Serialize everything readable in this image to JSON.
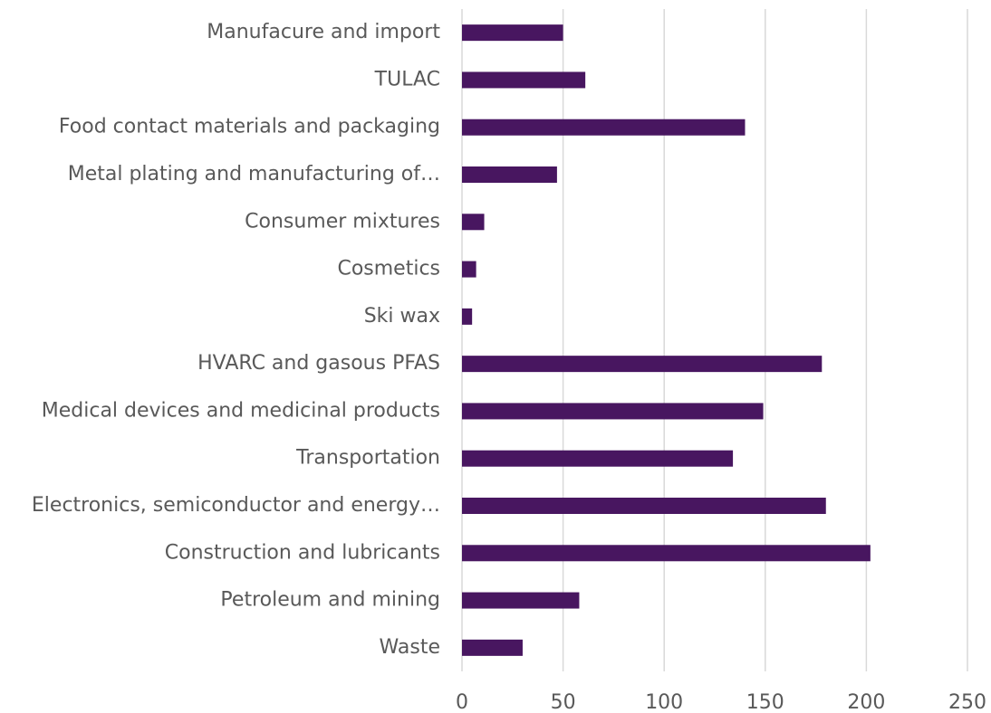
{
  "chart_data": {
    "type": "barh",
    "categories": [
      "Manufacure and import",
      "TULAC",
      "Food contact materials and packaging",
      "Metal plating and manufacturing of…",
      "Consumer mixtures",
      "Cosmetics",
      "Ski wax",
      "HVARC and gasous PFAS",
      "Medical devices and medicinal products",
      "Transportation",
      "Electronics, semiconductor and energy…",
      "Construction and lubricants",
      "Petroleum and mining",
      "Waste"
    ],
    "values": [
      50,
      61,
      140,
      47,
      11,
      7,
      5,
      178,
      149,
      134,
      180,
      202,
      58,
      30
    ],
    "color": "#481660",
    "xlim": [
      0,
      250
    ],
    "xticks": [
      0,
      50,
      100,
      150,
      200,
      250
    ],
    "grid": true
  }
}
